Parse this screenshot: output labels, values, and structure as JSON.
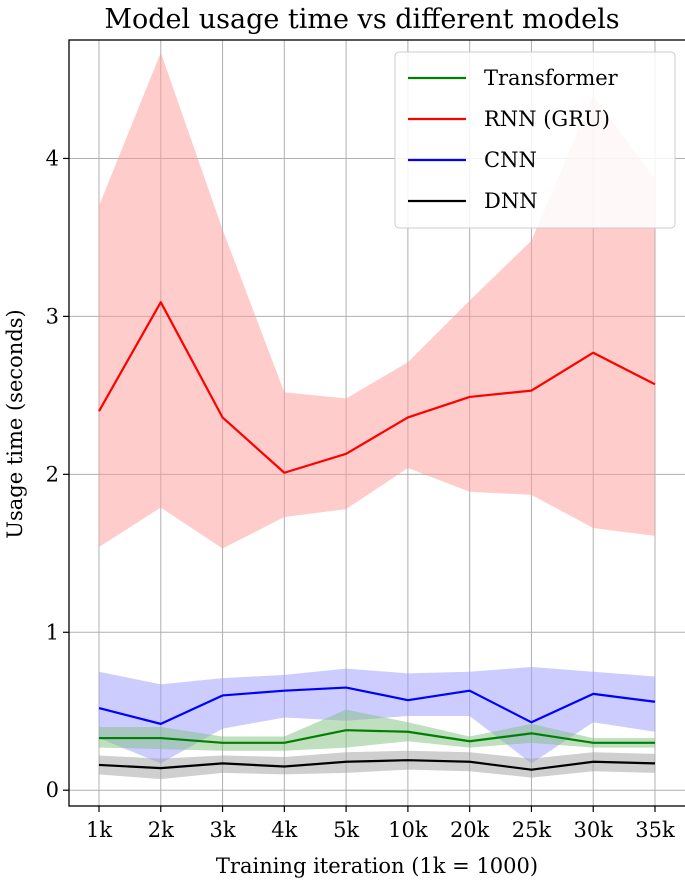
{
  "chart_data": {
    "type": "line",
    "title": "Model usage time vs different models",
    "xlabel": "Training iteration (1k = 1000)",
    "ylabel": "Usage time (seconds)",
    "categories": [
      "1k",
      "2k",
      "3k",
      "4k",
      "5k",
      "10k",
      "20k",
      "25k",
      "30k",
      "35k"
    ],
    "ylim": [
      -0.1,
      4.75
    ],
    "yticks": [
      0,
      1,
      2,
      3,
      4
    ],
    "grid": true,
    "legend_position": "top-right",
    "series": [
      {
        "name": "Transformer",
        "color": "#008000",
        "band_color": "#7fbf7f",
        "values": [
          0.33,
          0.33,
          0.3,
          0.3,
          0.38,
          0.37,
          0.31,
          0.36,
          0.3,
          0.3
        ],
        "lower": [
          0.27,
          0.26,
          0.25,
          0.25,
          0.27,
          0.31,
          0.27,
          0.3,
          0.27,
          0.27
        ],
        "upper": [
          0.4,
          0.4,
          0.34,
          0.34,
          0.51,
          0.43,
          0.34,
          0.42,
          0.33,
          0.33
        ]
      },
      {
        "name": "RNN (GRU)",
        "color": "#ff0000",
        "band_color": "#ff9a9a",
        "values": [
          2.4,
          3.09,
          2.36,
          2.01,
          2.13,
          2.36,
          2.49,
          2.53,
          2.77,
          2.57
        ],
        "lower": [
          1.54,
          1.79,
          1.53,
          1.73,
          1.78,
          2.04,
          1.89,
          1.87,
          1.66,
          1.61
        ],
        "upper": [
          3.7,
          4.67,
          3.55,
          2.52,
          2.48,
          2.71,
          3.1,
          3.48,
          4.4,
          3.87
        ]
      },
      {
        "name": "CNN",
        "color": "#0000ff",
        "band_color": "#9a9aff",
        "values": [
          0.52,
          0.42,
          0.6,
          0.63,
          0.65,
          0.57,
          0.63,
          0.43,
          0.61,
          0.56
        ],
        "lower": [
          0.33,
          0.17,
          0.39,
          0.46,
          0.44,
          0.47,
          0.47,
          0.17,
          0.43,
          0.37
        ],
        "upper": [
          0.75,
          0.67,
          0.71,
          0.73,
          0.77,
          0.74,
          0.75,
          0.78,
          0.75,
          0.72
        ]
      },
      {
        "name": "DNN",
        "color": "#000000",
        "band_color": "#a0a0a0",
        "values": [
          0.16,
          0.14,
          0.17,
          0.15,
          0.18,
          0.19,
          0.18,
          0.13,
          0.18,
          0.17
        ],
        "lower": [
          0.1,
          0.07,
          0.11,
          0.1,
          0.11,
          0.13,
          0.12,
          0.08,
          0.12,
          0.11
        ],
        "upper": [
          0.22,
          0.2,
          0.22,
          0.21,
          0.24,
          0.25,
          0.24,
          0.2,
          0.24,
          0.23
        ]
      }
    ]
  }
}
